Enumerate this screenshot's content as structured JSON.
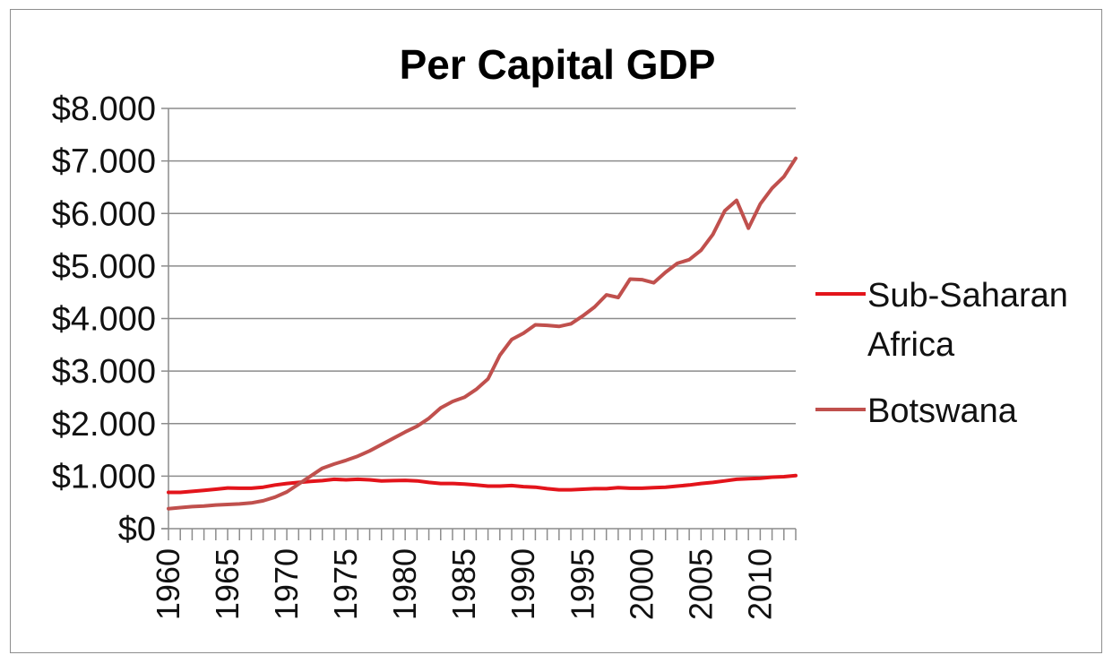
{
  "chart_data": {
    "type": "line",
    "title": "Per Capital GDP",
    "xlabel": "",
    "ylabel": "",
    "xlim": [
      1960,
      2013
    ],
    "ylim": [
      0,
      8000
    ],
    "yticks": [
      0,
      1000,
      2000,
      3000,
      4000,
      5000,
      6000,
      7000,
      8000
    ],
    "ytick_labels": [
      "$0",
      "$1.000",
      "$2.000",
      "$3.000",
      "$4.000",
      "$5.000",
      "$6.000",
      "$7.000",
      "$8.000"
    ],
    "xtick_labels": [
      "1960",
      "1965",
      "1970",
      "1975",
      "1980",
      "1985",
      "1990",
      "1995",
      "2000",
      "2005",
      "2010"
    ],
    "grid": true,
    "legend_position": "right",
    "x": [
      1960,
      1961,
      1962,
      1963,
      1964,
      1965,
      1966,
      1967,
      1968,
      1969,
      1970,
      1971,
      1972,
      1973,
      1974,
      1975,
      1976,
      1977,
      1978,
      1979,
      1980,
      1981,
      1982,
      1983,
      1984,
      1985,
      1986,
      1987,
      1988,
      1989,
      1990,
      1991,
      1992,
      1993,
      1994,
      1995,
      1996,
      1997,
      1998,
      1999,
      2000,
      2001,
      2002,
      2003,
      2004,
      2005,
      2006,
      2007,
      2008,
      2009,
      2010,
      2011,
      2012,
      2013
    ],
    "series": [
      {
        "name": "Sub-Saharan Africa",
        "color": "#e3141b",
        "values": [
          690,
          690,
          710,
          730,
          750,
          775,
          770,
          770,
          790,
          830,
          860,
          880,
          900,
          915,
          940,
          930,
          940,
          930,
          910,
          915,
          920,
          910,
          880,
          860,
          860,
          850,
          830,
          810,
          810,
          820,
          800,
          790,
          760,
          740,
          740,
          750,
          760,
          760,
          780,
          770,
          770,
          780,
          790,
          810,
          830,
          860,
          880,
          910,
          940,
          950,
          960,
          980,
          990,
          1010
        ]
      },
      {
        "name": "Botswana",
        "color": "#c0504d",
        "values": [
          380,
          400,
          420,
          430,
          450,
          460,
          470,
          490,
          530,
          600,
          700,
          850,
          1000,
          1150,
          1230,
          1300,
          1380,
          1480,
          1600,
          1720,
          1840,
          1950,
          2100,
          2300,
          2420,
          2500,
          2650,
          2850,
          3300,
          3600,
          3720,
          3880,
          3870,
          3850,
          3900,
          4050,
          4220,
          4450,
          4400,
          4750,
          4740,
          4680,
          4880,
          5050,
          5120,
          5300,
          5600,
          6050,
          6250,
          5720,
          6180,
          6480,
          6700,
          7050
        ]
      }
    ]
  }
}
